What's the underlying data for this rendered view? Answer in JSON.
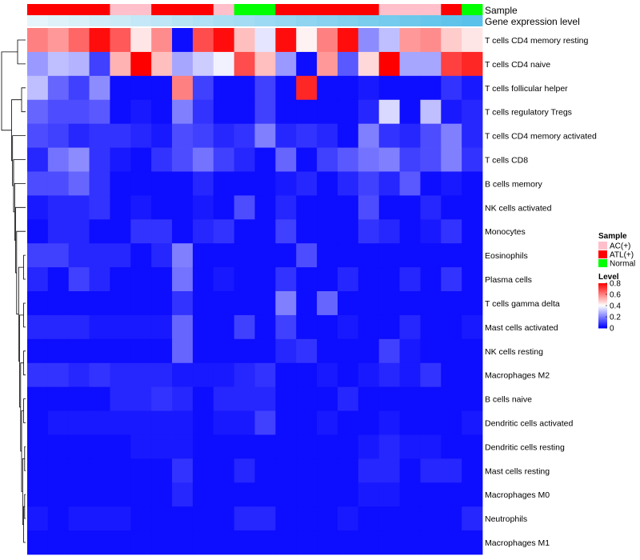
{
  "chart_data": {
    "type": "heatmap",
    "title": "",
    "annotation_titles": {
      "sample": "Sample",
      "gene_expression": "Gene expression level"
    },
    "legend_sample": {
      "title": "Sample",
      "entries": [
        {
          "label": "AC(+)",
          "color": "#ffc0cb"
        },
        {
          "label": "ATL(+)",
          "color": "#ff0000"
        },
        {
          "label": "Normal",
          "color": "#00ff00"
        }
      ]
    },
    "legend_level": {
      "title": "Level",
      "ticks": [
        "0.8",
        "0.6",
        "0.4",
        "0.2",
        "0"
      ],
      "tick_values": [
        0.8,
        0.6,
        0.4,
        0.2,
        0
      ],
      "range": [
        0,
        0.8
      ],
      "colors": {
        "low": "#0000ff",
        "mid": "#ffffff",
        "high": "#ff0000"
      }
    },
    "annotation_colors": {
      "AC(+)": "#ffc0cb",
      "ATL(+)": "#ff0000",
      "Normal": "#00ff00"
    },
    "sample_groups": [
      "ATL(+)",
      "ATL(+)",
      "ATL(+)",
      "ATL(+)",
      "AC(+)",
      "AC(+)",
      "ATL(+)",
      "ATL(+)",
      "ATL(+)",
      "AC(+)",
      "Normal",
      "Normal",
      "ATL(+)",
      "ATL(+)",
      "ATL(+)",
      "ATL(+)",
      "ATL(+)",
      "AC(+)",
      "AC(+)",
      "AC(+)",
      "ATL(+)",
      "Normal"
    ],
    "gene_expression_level": [
      0.02,
      0.07,
      0.11,
      0.16,
      0.2,
      0.25,
      0.29,
      0.34,
      0.38,
      0.43,
      0.47,
      0.52,
      0.56,
      0.61,
      0.65,
      0.7,
      0.74,
      0.79,
      0.83,
      0.88,
      0.92,
      0.97
    ],
    "gene_expression_colors": {
      "low": "#e9f6fb",
      "high": "#55bfe9"
    },
    "rows": [
      "T cells CD4 memory resting",
      "T cells CD4 naive",
      "T cells follicular helper",
      "T cells regulatory  Tregs",
      "T cells CD4 memory activated",
      "T cells CD8",
      "B cells memory",
      "NK cells activated",
      "Monocytes",
      "Eosinophils",
      "Plasma cells",
      "T cells gamma delta",
      "Mast cells activated",
      "NK cells resting",
      "Macrophages M2",
      "B cells naive",
      "Dendritic cells activated",
      "Dendritic cells resting",
      "Mast cells resting",
      "Macrophages M0",
      "Neutrophils",
      "Macrophages M1"
    ],
    "values": [
      [
        0.6,
        0.56,
        0.64,
        0.78,
        0.66,
        0.44,
        0.58,
        0.02,
        0.68,
        0.78,
        0.5,
        0.36,
        0.78,
        0.42,
        0.6,
        0.78,
        0.22,
        0.3,
        0.56,
        0.58,
        0.48,
        0.44
      ],
      [
        0.24,
        0.3,
        0.28,
        0.1,
        0.52,
        0.8,
        0.5,
        0.26,
        0.32,
        0.38,
        0.68,
        0.5,
        0.24,
        0.02,
        0.56,
        0.14,
        0.46,
        0.8,
        0.26,
        0.26,
        0.7,
        0.74
      ],
      [
        0.3,
        0.16,
        0.1,
        0.22,
        0.02,
        0.02,
        0.02,
        0.6,
        0.1,
        0.02,
        0.02,
        0.1,
        0.02,
        0.74,
        0.02,
        0.02,
        0.04,
        0.02,
        0.02,
        0.02,
        0.08,
        0.04
      ],
      [
        0.16,
        0.12,
        0.12,
        0.14,
        0.02,
        0.04,
        0.02,
        0.2,
        0.08,
        0.02,
        0.02,
        0.1,
        0.02,
        0.02,
        0.02,
        0.02,
        0.06,
        0.34,
        0.02,
        0.3,
        0.04,
        0.06
      ],
      [
        0.12,
        0.1,
        0.06,
        0.08,
        0.08,
        0.06,
        0.04,
        0.12,
        0.1,
        0.06,
        0.08,
        0.2,
        0.06,
        0.08,
        0.06,
        0.02,
        0.2,
        0.08,
        0.06,
        0.12,
        0.2,
        0.06
      ],
      [
        0.06,
        0.18,
        0.22,
        0.08,
        0.04,
        0.02,
        0.08,
        0.12,
        0.18,
        0.1,
        0.06,
        0.02,
        0.16,
        0.02,
        0.1,
        0.14,
        0.18,
        0.2,
        0.1,
        0.12,
        0.2,
        0.08
      ],
      [
        0.12,
        0.12,
        0.16,
        0.08,
        0.02,
        0.02,
        0.02,
        0.02,
        0.06,
        0.02,
        0.02,
        0.02,
        0.04,
        0.06,
        0.02,
        0.06,
        0.1,
        0.06,
        0.14,
        0.02,
        0.04,
        0.02
      ],
      [
        0.04,
        0.06,
        0.06,
        0.08,
        0.02,
        0.04,
        0.02,
        0.02,
        0.04,
        0.02,
        0.12,
        0.02,
        0.06,
        0.02,
        0.02,
        0.02,
        0.12,
        0.02,
        0.02,
        0.06,
        0.02,
        0.02
      ],
      [
        0.02,
        0.06,
        0.06,
        0.02,
        0.02,
        0.08,
        0.08,
        0.02,
        0.06,
        0.08,
        0.02,
        0.02,
        0.1,
        0.02,
        0.02,
        0.02,
        0.08,
        0.06,
        0.02,
        0.04,
        0.08,
        0.02
      ],
      [
        0.1,
        0.1,
        0.06,
        0.06,
        0.06,
        0.02,
        0.06,
        0.2,
        0.02,
        0.02,
        0.02,
        0.02,
        0.02,
        0.12,
        0.02,
        0.02,
        0.02,
        0.02,
        0.02,
        0.02,
        0.02,
        0.02
      ],
      [
        0.06,
        0.02,
        0.1,
        0.06,
        0.02,
        0.02,
        0.02,
        0.18,
        0.02,
        0.04,
        0.02,
        0.02,
        0.08,
        0.02,
        0.02,
        0.06,
        0.02,
        0.02,
        0.06,
        0.02,
        0.08,
        0.02
      ],
      [
        0.02,
        0.02,
        0.02,
        0.02,
        0.02,
        0.02,
        0.02,
        0.08,
        0.02,
        0.02,
        0.02,
        0.02,
        0.2,
        0.02,
        0.16,
        0.02,
        0.02,
        0.02,
        0.02,
        0.02,
        0.02,
        0.02
      ],
      [
        0.06,
        0.06,
        0.06,
        0.04,
        0.04,
        0.04,
        0.04,
        0.16,
        0.02,
        0.02,
        0.1,
        0.02,
        0.1,
        0.02,
        0.02,
        0.04,
        0.02,
        0.02,
        0.06,
        0.02,
        0.02,
        0.04
      ],
      [
        0.02,
        0.02,
        0.02,
        0.02,
        0.02,
        0.02,
        0.02,
        0.16,
        0.02,
        0.02,
        0.02,
        0.02,
        0.06,
        0.08,
        0.02,
        0.02,
        0.02,
        0.1,
        0.04,
        0.02,
        0.02,
        0.02
      ],
      [
        0.08,
        0.08,
        0.06,
        0.08,
        0.06,
        0.06,
        0.06,
        0.04,
        0.04,
        0.04,
        0.06,
        0.08,
        0.02,
        0.02,
        0.04,
        0.02,
        0.04,
        0.06,
        0.04,
        0.08,
        0.02,
        0.02
      ],
      [
        0.02,
        0.02,
        0.02,
        0.02,
        0.06,
        0.06,
        0.08,
        0.06,
        0.02,
        0.06,
        0.06,
        0.06,
        0.02,
        0.02,
        0.02,
        0.06,
        0.02,
        0.02,
        0.02,
        0.02,
        0.02,
        0.02
      ],
      [
        0.02,
        0.04,
        0.04,
        0.04,
        0.04,
        0.04,
        0.04,
        0.04,
        0.02,
        0.04,
        0.04,
        0.1,
        0.02,
        0.02,
        0.04,
        0.02,
        0.02,
        0.04,
        0.02,
        0.02,
        0.02,
        0.04
      ],
      [
        0.02,
        0.02,
        0.02,
        0.02,
        0.02,
        0.04,
        0.04,
        0.04,
        0.02,
        0.02,
        0.02,
        0.02,
        0.02,
        0.02,
        0.02,
        0.02,
        0.04,
        0.06,
        0.04,
        0.04,
        0.02,
        0.02
      ],
      [
        0.02,
        0.02,
        0.02,
        0.02,
        0.02,
        0.02,
        0.02,
        0.08,
        0.02,
        0.02,
        0.06,
        0.02,
        0.02,
        0.02,
        0.02,
        0.02,
        0.06,
        0.06,
        0.02,
        0.06,
        0.06,
        0.02
      ],
      [
        0.02,
        0.02,
        0.02,
        0.02,
        0.02,
        0.02,
        0.02,
        0.06,
        0.02,
        0.02,
        0.02,
        0.02,
        0.02,
        0.02,
        0.02,
        0.02,
        0.04,
        0.04,
        0.02,
        0.02,
        0.02,
        0.02
      ],
      [
        0.04,
        0.02,
        0.04,
        0.04,
        0.04,
        0.02,
        0.02,
        0.02,
        0.02,
        0.02,
        0.06,
        0.06,
        0.02,
        0.02,
        0.02,
        0.04,
        0.02,
        0.02,
        0.02,
        0.02,
        0.02,
        0.06
      ],
      [
        0.02,
        0.02,
        0.02,
        0.02,
        0.02,
        0.02,
        0.02,
        0.02,
        0.02,
        0.02,
        0.02,
        0.02,
        0.02,
        0.02,
        0.02,
        0.02,
        0.02,
        0.02,
        0.02,
        0.02,
        0.02,
        0.02
      ]
    ],
    "row_dendrogram": [
      {
        "a": 0,
        "b": 1,
        "height": 0.8
      },
      {
        "a": 2,
        "b": 3,
        "height": 0.4
      },
      {
        "a": 9,
        "b": 10,
        "height": 0.2
      },
      {
        "a": 11,
        "b": 12,
        "height": 0.2
      },
      {
        "a": 13,
        "b": 14,
        "height": 0.2
      },
      {
        "a": 15,
        "b": 16,
        "height": 0.2
      },
      {
        "a": 17,
        "b": 18,
        "height": 0.1
      },
      {
        "a": 19,
        "b": 20,
        "height": 0.1
      },
      {
        "a": 19,
        "b": 21,
        "height": 0.2
      },
      {
        "a": 17,
        "b": 19,
        "height": 0.3
      },
      {
        "a": 15,
        "b": 17,
        "height": 0.4
      },
      {
        "a": 13,
        "b": 15,
        "height": 0.5
      },
      {
        "a": 11,
        "b": 13,
        "height": 0.6
      },
      {
        "a": 9,
        "b": 11,
        "height": 0.7
      },
      {
        "a": 8,
        "b": 9,
        "height": 0.9
      },
      {
        "a": 7,
        "b": 8,
        "height": 1.0
      },
      {
        "a": 6,
        "b": 7,
        "height": 1.1
      },
      {
        "a": 5,
        "b": 6,
        "height": 1.2
      },
      {
        "a": 4,
        "b": 5,
        "height": 1.3
      },
      {
        "a": 2,
        "b": 4,
        "height": 1.4
      },
      {
        "a": 0,
        "b": 2,
        "height": 2.4
      }
    ],
    "row_dendrogram_max_height": 2.4
  }
}
